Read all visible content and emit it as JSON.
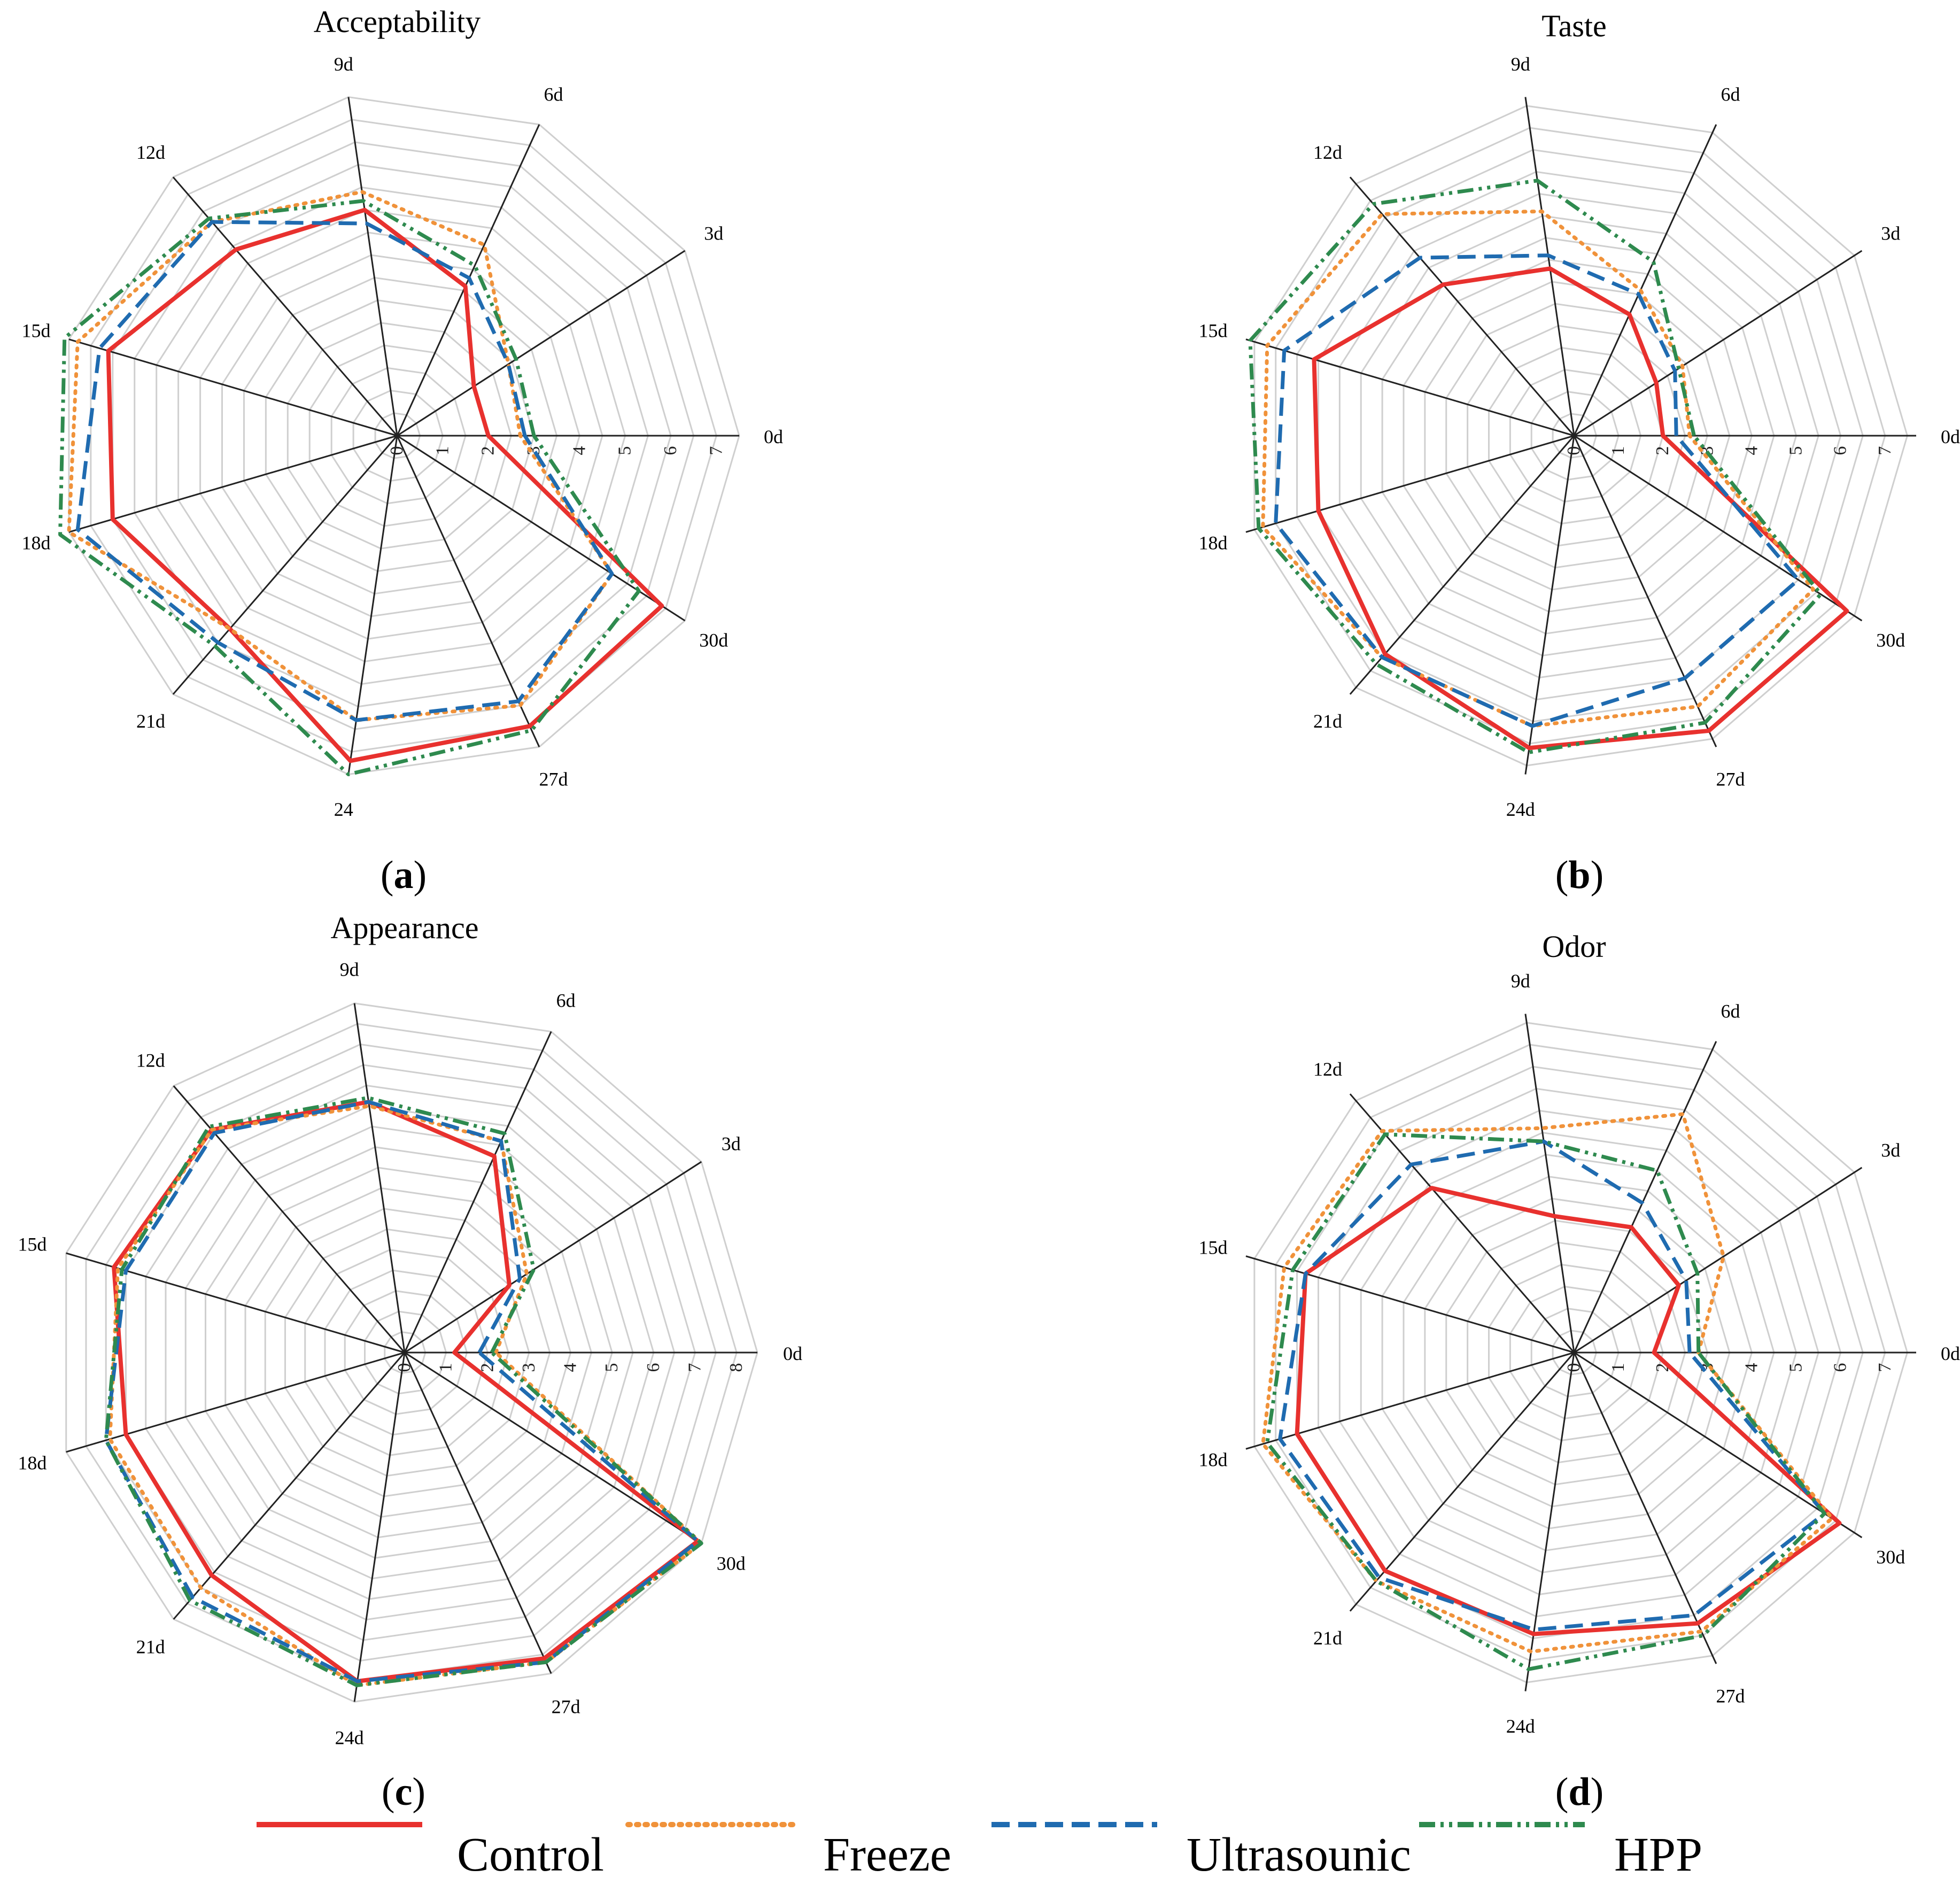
{
  "chart_data": [
    {
      "type": "radar",
      "panel": "a",
      "title": "Acceptability",
      "axes": [
        "0d",
        "3d",
        "6d",
        "9d",
        "12d",
        "15d",
        "18d",
        "21d",
        "24",
        "27d",
        "30d"
      ],
      "tick_labels": [
        "0",
        "1",
        "2",
        "3",
        "4",
        "5",
        "6",
        "7"
      ],
      "rmax": 7.5,
      "series": [
        {
          "name": "Control",
          "values": [
            2.0,
            2.0,
            3.6,
            5.0,
            5.4,
            6.6,
            6.5,
            5.6,
            7.2,
            7.0,
            6.9
          ]
        },
        {
          "name": "Freeze",
          "values": [
            2.7,
            2.9,
            4.6,
            5.4,
            6.2,
            7.3,
            7.5,
            5.6,
            6.3,
            6.5,
            5.6
          ]
        },
        {
          "name": "Ultrasounic",
          "values": [
            2.8,
            2.9,
            3.8,
            4.7,
            6.2,
            6.8,
            7.3,
            6.0,
            6.3,
            6.4,
            5.6
          ]
        },
        {
          "name": "HPP",
          "values": [
            3.0,
            3.1,
            4.1,
            5.2,
            6.3,
            7.6,
            7.7,
            6.1,
            7.5,
            7.1,
            6.3
          ]
        }
      ]
    },
    {
      "type": "radar",
      "panel": "b",
      "title": "Taste",
      "axes": [
        "0d",
        "3d",
        "6d",
        "9d",
        "12d",
        "15d",
        "18d",
        "21d",
        "24d",
        "27d",
        "30d"
      ],
      "tick_labels": [
        "0",
        "1",
        "2",
        "3",
        "4",
        "5",
        "6",
        "7"
      ],
      "rmax": 7.7,
      "series": [
        {
          "name": "Control",
          "values": [
            2.0,
            2.2,
            3.0,
            3.8,
            4.5,
            6.1,
            6.0,
            6.5,
            7.1,
            7.3,
            7.3
          ]
        },
        {
          "name": "Freeze",
          "values": [
            2.6,
            2.9,
            3.6,
            5.1,
            6.6,
            7.2,
            7.3,
            6.6,
            6.6,
            6.7,
            6.4
          ]
        },
        {
          "name": "Ultrasounic",
          "values": [
            2.3,
            2.7,
            3.5,
            4.1,
            5.3,
            6.8,
            7.0,
            6.6,
            6.6,
            6.0,
            6.0
          ]
        },
        {
          "name": "HPP",
          "values": [
            2.7,
            2.8,
            4.3,
            5.8,
            6.9,
            7.6,
            7.4,
            6.8,
            7.2,
            7.1,
            6.6
          ]
        }
      ]
    },
    {
      "type": "radar",
      "panel": "c",
      "title": "Appearance",
      "axes": [
        "0d",
        "3d",
        "6d",
        "9d",
        "12d",
        "15d",
        "18d",
        "21d",
        "24d",
        "27d",
        "30d"
      ],
      "tick_labels": [
        "0",
        "1",
        "2",
        "3",
        "4",
        "5",
        "6",
        "7",
        "8"
      ],
      "rmax": 8.5,
      "series": [
        {
          "name": "Control",
          "values": [
            1.2,
            3.0,
            5.2,
            6.1,
            7.1,
            7.3,
            7.0,
            7.1,
            8.0,
            8.1,
            8.4
          ]
        },
        {
          "name": "Freeze",
          "values": [
            2.2,
            3.5,
            5.6,
            6.0,
            7.1,
            7.2,
            7.4,
            7.5,
            8.1,
            8.2,
            8.5
          ]
        },
        {
          "name": "Ultrasounic",
          "values": [
            1.8,
            3.3,
            5.6,
            6.1,
            7.0,
            7.0,
            7.5,
            7.8,
            8.0,
            8.2,
            8.4
          ]
        },
        {
          "name": "HPP",
          "values": [
            2.1,
            3.7,
            5.8,
            6.2,
            7.2,
            7.1,
            7.5,
            7.9,
            8.1,
            8.2,
            8.5
          ]
        }
      ]
    },
    {
      "type": "radar",
      "panel": "d",
      "title": "Odor",
      "axes": [
        "0d",
        "3d",
        "6d",
        "9d",
        "12d",
        "15d",
        "18d",
        "21d",
        "24d",
        "27d",
        "30d"
      ],
      "tick_labels": [
        "0",
        "1",
        "2",
        "3",
        "4",
        "5",
        "6",
        "7"
      ],
      "rmax": 7.7,
      "series": [
        {
          "name": "Control",
          "values": [
            1.8,
            2.8,
            3.1,
            3.1,
            4.9,
            6.3,
            6.5,
            6.5,
            6.4,
            6.7,
            7.1
          ]
        },
        {
          "name": "Freeze",
          "values": [
            2.8,
            4.0,
            5.9,
            5.1,
            6.6,
            6.8,
            7.3,
            6.8,
            6.8,
            6.9,
            6.9
          ]
        },
        {
          "name": "Ultrasounic",
          "values": [
            2.6,
            3.0,
            3.7,
            4.8,
            5.6,
            6.3,
            6.9,
            6.7,
            6.3,
            6.5,
            6.7
          ]
        },
        {
          "name": "HPP",
          "values": [
            2.8,
            3.3,
            4.5,
            4.8,
            6.5,
            6.6,
            7.2,
            6.8,
            7.2,
            7.0,
            6.7
          ]
        }
      ]
    }
  ],
  "panel_labels": {
    "a": "a",
    "b": "b",
    "c": "c",
    "d": "d"
  },
  "legend": [
    {
      "name": "Control",
      "color": "#e8312e",
      "style": "solid"
    },
    {
      "name": "Freeze",
      "color": "#f0923a",
      "style": "dotted"
    },
    {
      "name": "Ultrasounic",
      "color": "#1f6bb0",
      "style": "dashed"
    },
    {
      "name": "HPP",
      "color": "#2e8a4e",
      "style": "dash-dot-dot"
    }
  ]
}
